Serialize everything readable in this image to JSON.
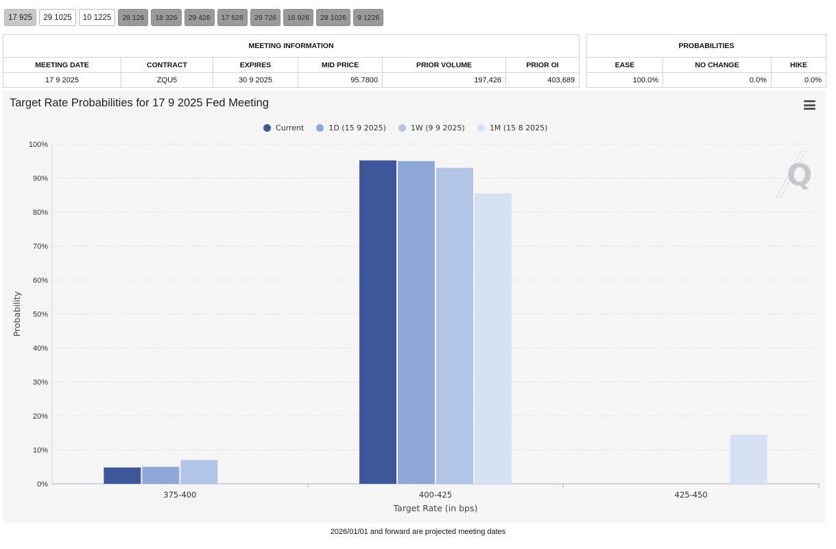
{
  "tabs": [
    {
      "label": "17 925",
      "style": "light"
    },
    {
      "label": "29 1025",
      "style": "white"
    },
    {
      "label": "10 1225",
      "style": "white"
    },
    {
      "label": "28 126",
      "style": "dark"
    },
    {
      "label": "18 326",
      "style": "dark"
    },
    {
      "label": "29 426",
      "style": "dark"
    },
    {
      "label": "17 626",
      "style": "dark"
    },
    {
      "label": "29 726",
      "style": "dark"
    },
    {
      "label": "16 926",
      "style": "dark"
    },
    {
      "label": "28 1026",
      "style": "dark"
    },
    {
      "label": "9 1226",
      "style": "dark"
    }
  ],
  "meeting_info": {
    "title": "MEETING INFORMATION",
    "headers": [
      "MEETING DATE",
      "CONTRACT",
      "EXPIRES",
      "MID PRICE",
      "PRIOR VOLUME",
      "PRIOR OI"
    ],
    "row": [
      "17 9 2025",
      "ZQU5",
      "30 9 2025",
      "95.7800",
      "197,426",
      "403,689"
    ]
  },
  "probabilities": {
    "title": "PROBABILITIES",
    "headers": [
      "EASE",
      "NO CHANGE",
      "HIKE"
    ],
    "row": [
      "100.0%",
      "0.0%",
      "0.0%"
    ]
  },
  "chart_data": {
    "type": "bar",
    "title": "Target Rate Probabilities for 17 9 2025 Fed Meeting",
    "xlabel": "Target Rate (in bps)",
    "ylabel": "Probability",
    "categories": [
      "375-400",
      "400-425",
      "425-450"
    ],
    "ylim": [
      0,
      100
    ],
    "yticks": [
      "0%",
      "10%",
      "20%",
      "30%",
      "40%",
      "50%",
      "60%",
      "70%",
      "80%",
      "90%",
      "100%"
    ],
    "grid": true,
    "legend_position": "top",
    "series": [
      {
        "name": "Current",
        "color": "#3d5799",
        "values": [
          4.8,
          95.2,
          0
        ]
      },
      {
        "name": "1D (15 9 2025)",
        "color": "#8ea8d8",
        "values": [
          5.0,
          95.0,
          0
        ]
      },
      {
        "name": "1W (9 9 2025)",
        "color": "#b3c5e6",
        "values": [
          7.0,
          93.0,
          0
        ]
      },
      {
        "name": "1M (15 8 2025)",
        "color": "#d6e1f3",
        "values": [
          0,
          85.5,
          14.5
        ]
      }
    ]
  },
  "footer": "2026/01/01 and forward are projected meeting dates"
}
